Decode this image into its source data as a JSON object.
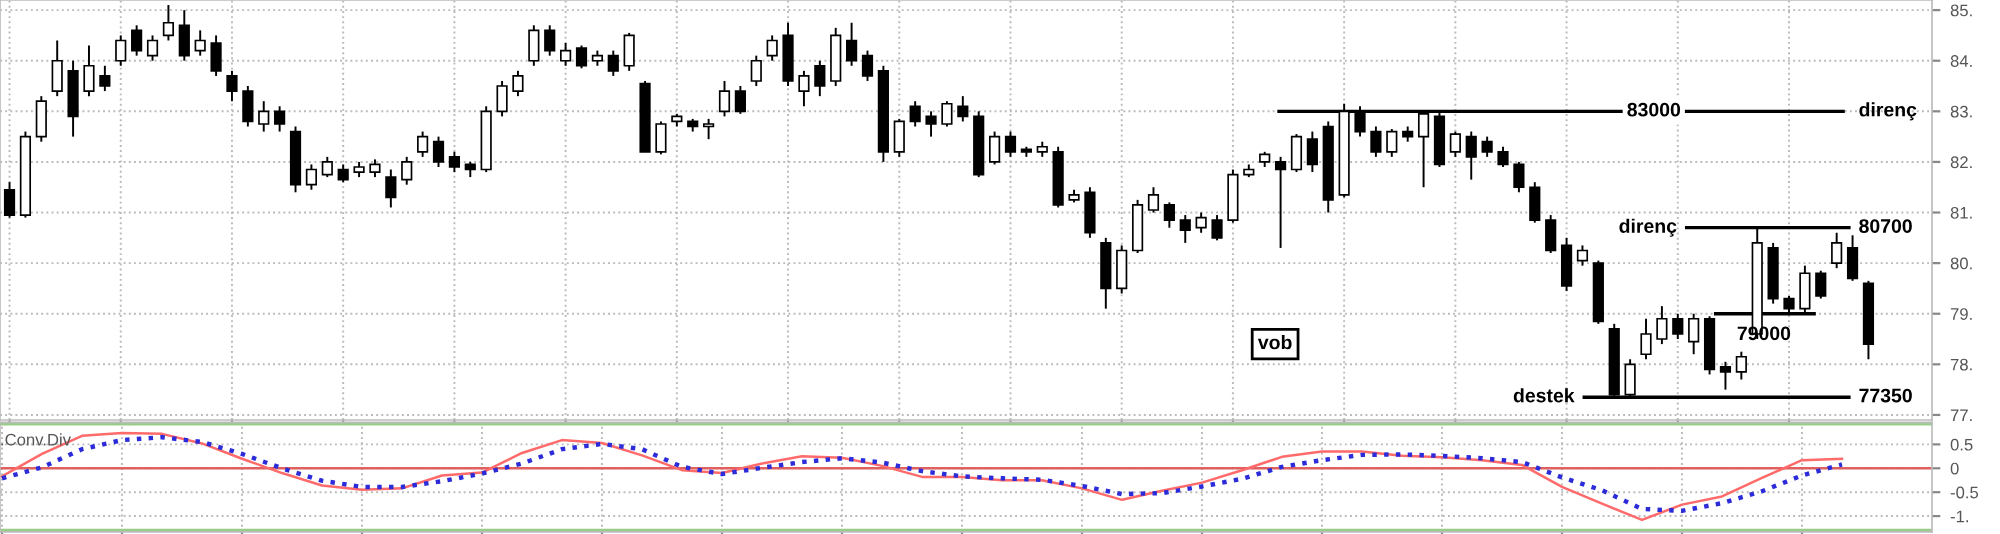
{
  "chart_data": [
    {
      "type": "candlestick",
      "color": "#000000",
      "grid": true,
      "tick_labels": "y",
      "categories": [
        null,
        null,
        null,
        null,
        null,
        null,
        null,
        null,
        null,
        null,
        null,
        null,
        null,
        null,
        null,
        null,
        null,
        null,
        null,
        null,
        null,
        null,
        null,
        null,
        null,
        null,
        null,
        null,
        null,
        null,
        null,
        null,
        null,
        null,
        null,
        null,
        null,
        null,
        null,
        null,
        null,
        null,
        null,
        null,
        null,
        null,
        null,
        null,
        null,
        null,
        null,
        null,
        null,
        null,
        null,
        null,
        null,
        null,
        null,
        null,
        null,
        null,
        null,
        null,
        null,
        null,
        null,
        null,
        null,
        null,
        null,
        null,
        null,
        null,
        null,
        null,
        null,
        null,
        null,
        null,
        null,
        null,
        null,
        null,
        null,
        null,
        null,
        null,
        null,
        null,
        null,
        null,
        null,
        null,
        null,
        null,
        null,
        null,
        null,
        null,
        null,
        null,
        null,
        null,
        null,
        null,
        null,
        null,
        null,
        null,
        null,
        null,
        null,
        null,
        null,
        null,
        null,
        null
      ],
      "ohlc": [
        [
          81.45,
          81.6,
          80.9,
          80.95
        ],
        [
          80.95,
          82.6,
          80.9,
          82.5
        ],
        [
          82.5,
          83.3,
          82.4,
          83.2
        ],
        [
          83.4,
          84.4,
          83.3,
          84.0
        ],
        [
          83.8,
          84.0,
          82.5,
          82.9
        ],
        [
          83.4,
          84.3,
          83.3,
          83.9
        ],
        [
          83.7,
          83.9,
          83.4,
          83.5
        ],
        [
          84.0,
          84.5,
          83.9,
          84.4
        ],
        [
          84.6,
          84.7,
          84.1,
          84.2
        ],
        [
          84.1,
          84.5,
          84.0,
          84.4
        ],
        [
          84.5,
          85.1,
          84.4,
          84.75
        ],
        [
          84.7,
          85.0,
          84.0,
          84.1
        ],
        [
          84.2,
          84.6,
          84.1,
          84.4
        ],
        [
          84.35,
          84.5,
          83.7,
          83.8
        ],
        [
          83.7,
          83.8,
          83.2,
          83.4
        ],
        [
          83.4,
          83.5,
          82.7,
          82.8
        ],
        [
          82.75,
          83.2,
          82.6,
          83.0
        ],
        [
          83.0,
          83.1,
          82.6,
          82.75
        ],
        [
          82.6,
          82.7,
          81.4,
          81.55
        ],
        [
          81.55,
          81.95,
          81.45,
          81.85
        ],
        [
          81.75,
          82.1,
          81.7,
          82.0
        ],
        [
          81.85,
          81.95,
          81.6,
          81.65
        ],
        [
          81.8,
          82.0,
          81.7,
          81.9
        ],
        [
          81.8,
          82.05,
          81.7,
          81.95
        ],
        [
          81.7,
          81.85,
          81.1,
          81.3
        ],
        [
          81.65,
          82.1,
          81.55,
          82.0
        ],
        [
          82.2,
          82.6,
          82.1,
          82.5
        ],
        [
          82.4,
          82.5,
          81.9,
          82.0
        ],
        [
          82.1,
          82.2,
          81.8,
          81.9
        ],
        [
          81.95,
          82.0,
          81.7,
          81.85
        ],
        [
          81.85,
          83.1,
          81.8,
          83.0
        ],
        [
          83.0,
          83.6,
          82.9,
          83.5
        ],
        [
          83.4,
          83.8,
          83.3,
          83.7
        ],
        [
          84.0,
          84.7,
          83.9,
          84.6
        ],
        [
          84.6,
          84.7,
          84.1,
          84.2
        ],
        [
          84.0,
          84.35,
          83.9,
          84.2
        ],
        [
          84.25,
          84.3,
          83.85,
          83.9
        ],
        [
          84.0,
          84.2,
          83.9,
          84.1
        ],
        [
          84.1,
          84.2,
          83.7,
          83.8
        ],
        [
          83.9,
          84.55,
          83.8,
          84.5
        ],
        [
          83.55,
          83.6,
          82.2,
          82.2
        ],
        [
          82.2,
          82.8,
          82.15,
          82.75
        ],
        [
          82.8,
          82.95,
          82.7,
          82.9
        ],
        [
          82.8,
          82.85,
          82.6,
          82.7
        ],
        [
          82.7,
          82.85,
          82.45,
          82.75
        ],
        [
          83.0,
          83.6,
          82.9,
          83.4
        ],
        [
          83.4,
          83.5,
          82.95,
          83.0
        ],
        [
          83.6,
          84.1,
          83.5,
          84.0
        ],
        [
          84.1,
          84.5,
          84.0,
          84.4
        ],
        [
          84.5,
          84.75,
          83.5,
          83.6
        ],
        [
          83.4,
          83.8,
          83.1,
          83.7
        ],
        [
          83.9,
          84.0,
          83.3,
          83.5
        ],
        [
          83.6,
          84.65,
          83.5,
          84.5
        ],
        [
          84.4,
          84.75,
          83.9,
          84.0
        ],
        [
          84.1,
          84.2,
          83.6,
          83.7
        ],
        [
          83.8,
          83.9,
          82.0,
          82.2
        ],
        [
          82.2,
          82.85,
          82.1,
          82.8
        ],
        [
          83.1,
          83.2,
          82.7,
          82.8
        ],
        [
          82.9,
          83.0,
          82.5,
          82.75
        ],
        [
          82.75,
          83.2,
          82.7,
          83.15
        ],
        [
          83.1,
          83.3,
          82.8,
          82.9
        ],
        [
          82.9,
          83.0,
          81.7,
          81.75
        ],
        [
          82.0,
          82.6,
          81.95,
          82.5
        ],
        [
          82.5,
          82.6,
          82.1,
          82.2
        ],
        [
          82.25,
          82.3,
          82.1,
          82.2
        ],
        [
          82.2,
          82.4,
          82.1,
          82.3
        ],
        [
          82.2,
          82.3,
          81.1,
          81.15
        ],
        [
          81.25,
          81.45,
          81.2,
          81.35
        ],
        [
          81.4,
          81.5,
          80.5,
          80.6
        ],
        [
          80.4,
          80.5,
          79.1,
          79.5
        ],
        [
          79.5,
          80.35,
          79.4,
          80.25
        ],
        [
          80.25,
          81.25,
          80.2,
          81.15
        ],
        [
          81.05,
          81.5,
          81.0,
          81.35
        ],
        [
          81.15,
          81.2,
          80.7,
          80.85
        ],
        [
          80.85,
          80.95,
          80.4,
          80.65
        ],
        [
          80.7,
          81.0,
          80.6,
          80.9
        ],
        [
          80.85,
          80.95,
          80.45,
          80.5
        ],
        [
          80.85,
          81.85,
          80.8,
          81.75
        ],
        [
          81.75,
          81.95,
          81.7,
          81.85
        ],
        [
          82.0,
          82.2,
          81.9,
          82.15
        ],
        [
          82.0,
          82.1,
          80.3,
          81.85
        ],
        [
          81.85,
          82.55,
          81.8,
          82.5
        ],
        [
          82.45,
          82.6,
          81.8,
          81.95
        ],
        [
          82.7,
          82.8,
          81.0,
          81.25
        ],
        [
          81.35,
          83.15,
          81.3,
          83.0
        ],
        [
          83.0,
          83.1,
          82.5,
          82.6
        ],
        [
          82.6,
          82.7,
          82.1,
          82.2
        ],
        [
          82.2,
          82.65,
          82.1,
          82.6
        ],
        [
          82.6,
          82.7,
          82.4,
          82.5
        ],
        [
          82.5,
          83.0,
          81.5,
          82.95
        ],
        [
          82.9,
          83.0,
          81.9,
          81.95
        ],
        [
          82.2,
          82.6,
          82.1,
          82.55
        ],
        [
          82.5,
          82.6,
          81.65,
          82.1
        ],
        [
          82.4,
          82.5,
          82.1,
          82.2
        ],
        [
          82.2,
          82.3,
          81.9,
          81.95
        ],
        [
          81.95,
          82.0,
          81.4,
          81.5
        ],
        [
          81.5,
          81.6,
          80.8,
          80.85
        ],
        [
          80.85,
          80.95,
          80.2,
          80.25
        ],
        [
          80.35,
          80.5,
          79.45,
          79.55
        ],
        [
          80.05,
          80.35,
          79.95,
          80.25
        ],
        [
          80.0,
          80.05,
          78.8,
          78.85
        ],
        [
          78.7,
          78.8,
          77.35,
          77.4
        ],
        [
          77.4,
          78.1,
          77.35,
          78.0
        ],
        [
          78.2,
          78.9,
          78.1,
          78.6
        ],
        [
          78.5,
          79.15,
          78.4,
          78.9
        ],
        [
          78.9,
          79.0,
          78.5,
          78.6
        ],
        [
          78.45,
          79.0,
          78.2,
          78.9
        ],
        [
          78.9,
          78.95,
          77.8,
          77.9
        ],
        [
          77.95,
          78.05,
          77.5,
          77.85
        ],
        [
          77.85,
          78.25,
          77.7,
          78.15
        ],
        [
          78.6,
          80.7,
          78.5,
          80.4
        ],
        [
          80.3,
          80.4,
          79.2,
          79.3
        ],
        [
          79.3,
          79.35,
          79.0,
          79.1
        ],
        [
          79.1,
          79.95,
          79.0,
          79.8
        ],
        [
          79.8,
          79.85,
          79.3,
          79.35
        ],
        [
          80.0,
          80.6,
          79.9,
          80.4
        ],
        [
          80.3,
          80.55,
          79.65,
          79.7
        ],
        [
          79.6,
          79.65,
          78.1,
          78.4
        ]
      ],
      "ylim": [
        76.9,
        85.2
      ],
      "yticks": [
        {
          "value": 77,
          "label": "77."
        },
        {
          "value": 78,
          "label": "78."
        },
        {
          "value": 79,
          "label": "79."
        },
        {
          "value": 80,
          "label": "80."
        },
        {
          "value": 81,
          "label": "81."
        },
        {
          "value": 82,
          "label": "82."
        },
        {
          "value": 83,
          "label": "83."
        },
        {
          "value": 84,
          "label": "84."
        },
        {
          "value": 85,
          "label": "85."
        }
      ],
      "ref_lines": [
        {
          "axis": "y",
          "value": 83.0,
          "label": "83000",
          "color": "#000000"
        },
        {
          "axis": "y",
          "value": 80.7,
          "label": "80700",
          "color": "#000000"
        },
        {
          "axis": "y",
          "value": 79.0,
          "label": "79000",
          "color": "#000000"
        },
        {
          "axis": "y",
          "value": 77.35,
          "label": "77350",
          "color": "#000000"
        }
      ],
      "annotations": [
        "direnç",
        "direnç",
        "destek",
        "vob"
      ]
    },
    {
      "type": "line",
      "title": ".Conv.Div",
      "grid": true,
      "tick_labels": "y",
      "categories": [
        null,
        null,
        null,
        null,
        null,
        null,
        null,
        null,
        null,
        null,
        null,
        null,
        null,
        null,
        null,
        null,
        null,
        null,
        null,
        null,
        null,
        null,
        null,
        null,
        null,
        null,
        null,
        null,
        null,
        null,
        null,
        null,
        null,
        null,
        null,
        null,
        null,
        null,
        null,
        null,
        null,
        null,
        null,
        null,
        null,
        null,
        null
      ],
      "series": [
        {
          "color": "#ff6b6b",
          "line_style": "solid",
          "values": [
            -0.17,
            0.3,
            0.68,
            0.74,
            0.72,
            0.52,
            0.2,
            -0.1,
            -0.36,
            -0.45,
            -0.42,
            -0.15,
            -0.09,
            0.32,
            0.59,
            0.53,
            0.27,
            -0.04,
            -0.1,
            0.1,
            0.25,
            0.22,
            0.05,
            -0.18,
            -0.18,
            -0.25,
            -0.25,
            -0.42,
            -0.66,
            -0.47,
            -0.3,
            -0.04,
            0.24,
            0.35,
            0.35,
            0.26,
            0.23,
            0.17,
            0.07,
            -0.39,
            -0.74,
            -1.08,
            -0.76,
            -0.59,
            -0.2,
            0.17,
            0.2
          ]
        },
        {
          "color": "#2b2bd9",
          "line_style": "dotted",
          "values": [
            -0.21,
            0.02,
            0.4,
            0.59,
            0.65,
            0.55,
            0.3,
            0.0,
            -0.26,
            -0.39,
            -0.39,
            -0.27,
            -0.11,
            0.1,
            0.4,
            0.51,
            0.4,
            0.03,
            -0.12,
            0.01,
            0.13,
            0.21,
            0.12,
            -0.06,
            -0.17,
            -0.21,
            -0.24,
            -0.37,
            -0.54,
            -0.52,
            -0.38,
            -0.22,
            0.03,
            0.17,
            0.28,
            0.29,
            0.26,
            0.21,
            0.13,
            -0.19,
            -0.46,
            -0.85,
            -0.89,
            -0.73,
            -0.48,
            -0.15,
            0.08
          ]
        }
      ],
      "ylim": [
        -1.33,
        0.96
      ],
      "yticks": [
        {
          "value": -1,
          "label": "-1."
        },
        {
          "value": -0.5,
          "label": "-0.5"
        },
        {
          "value": 0,
          "label": "0"
        },
        {
          "value": 0.5,
          "label": "0.5"
        }
      ],
      "ref_lines": [
        {
          "axis": "y",
          "value": 0,
          "color": "#e06060"
        },
        {
          "axis": "y",
          "value": 0.92,
          "color": "#99cc88"
        },
        {
          "axis": "y",
          "value": -1.29,
          "color": "#99cc88"
        }
      ]
    }
  ]
}
